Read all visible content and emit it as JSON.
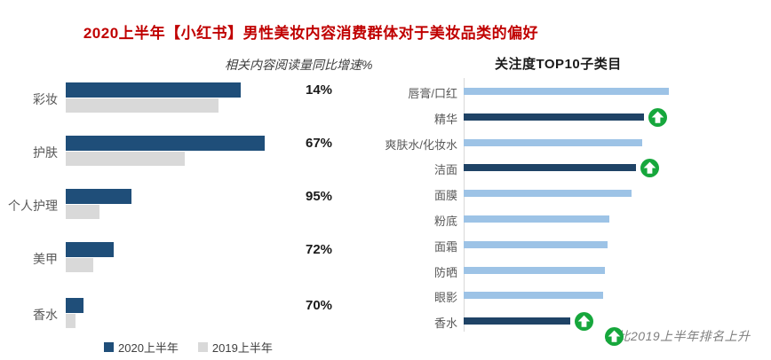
{
  "title": "2020上半年【小红书】男性美妆内容消费群体对于美妆品类的偏好",
  "colors": {
    "title": "#c00000",
    "bar_2020": "#1f4e79",
    "bar_2019": "#d9d9d9",
    "bar_light": "#9dc3e6",
    "bar_dark": "#1f4366",
    "green": "#16a73c",
    "axis": "#d9d9d9"
  },
  "chart_data": [
    {
      "type": "bar",
      "orientation": "horizontal",
      "title": "",
      "units": "relative content reading volume (max=100, estimated from bar lengths)",
      "categories": [
        "彩妆",
        "护肤",
        "个人护理",
        "美甲",
        "香水"
      ],
      "series": [
        {
          "name": "2020上半年",
          "values": [
            88,
            100,
            33,
            24,
            9
          ]
        },
        {
          "name": "2019上半年",
          "values": [
            77,
            60,
            17,
            14,
            5
          ]
        }
      ],
      "growth_header": "相关内容阅读量同比增速%",
      "growth_labels": [
        "14%",
        "67%",
        "95%",
        "72%",
        "70%"
      ],
      "xlim": [
        0,
        100
      ],
      "grid": false,
      "legend_position": "bottom"
    },
    {
      "type": "bar",
      "orientation": "horizontal",
      "title": "关注度TOP10子类目",
      "units": "relative attention (max=100, estimated from bar lengths)",
      "categories": [
        "唇膏/口红",
        "精华",
        "爽肤水/化妆水",
        "洁面",
        "面膜",
        "粉底",
        "面霜",
        "防晒",
        "眼影",
        "香水"
      ],
      "values": [
        100,
        88,
        87,
        84,
        82,
        71,
        70,
        69,
        68,
        52
      ],
      "rank_up": [
        false,
        true,
        false,
        true,
        false,
        false,
        false,
        false,
        false,
        true
      ],
      "annotation": "对比2019上半年排名上升",
      "xlim": [
        0,
        100
      ],
      "grid": false
    }
  ]
}
